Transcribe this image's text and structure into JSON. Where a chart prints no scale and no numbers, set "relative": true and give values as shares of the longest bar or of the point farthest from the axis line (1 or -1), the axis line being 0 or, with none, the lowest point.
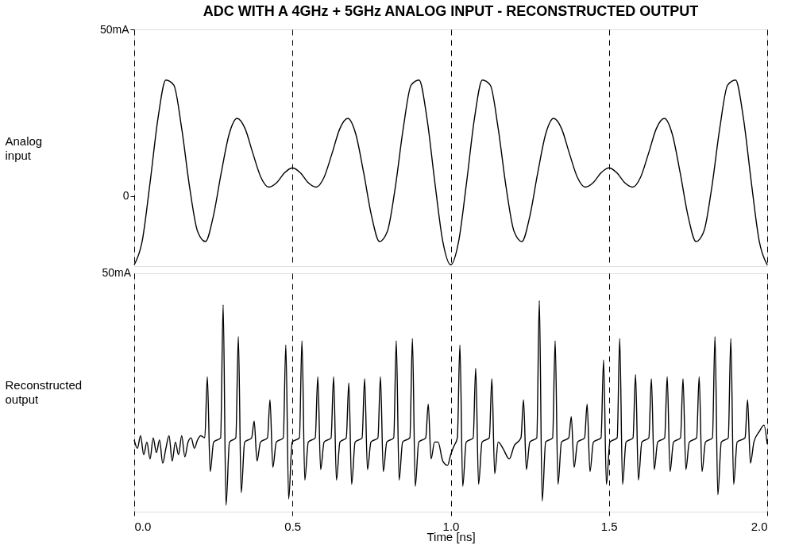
{
  "chart_data": [
    {
      "type": "line",
      "title": "ADC WITH A 4GHz + 5GHz ANALOG INPUT - RECONSTRUCTED OUTPUT",
      "ylabel": "Analog input",
      "xlim": [
        0,
        2
      ],
      "ylim": [
        -21,
        50
      ],
      "yticks": [
        {
          "value": 50,
          "label": "50mA"
        },
        0
      ],
      "tick_labels": "y",
      "grid": "x",
      "series": [
        {
          "color": "#000000",
          "x": [
            0,
            0.025,
            0.05,
            0.075,
            0.1,
            0.125,
            0.15,
            0.175,
            0.2,
            0.225,
            0.25,
            0.275,
            0.3,
            0.325,
            0.35,
            0.375,
            0.4,
            0.425,
            0.45,
            0.475,
            0.5,
            0.525,
            0.55,
            0.575,
            0.6,
            0.625,
            0.65,
            0.675,
            0.7,
            0.725,
            0.75,
            0.775,
            0.8,
            0.825,
            0.85,
            0.875,
            0.9,
            0.925,
            0.95,
            0.975,
            1.0,
            1.025,
            1.05,
            1.075,
            1.1,
            1.125,
            1.15,
            1.175,
            1.2,
            1.225,
            1.25,
            1.275,
            1.3,
            1.325,
            1.35,
            1.375,
            1.4,
            1.425,
            1.45,
            1.475,
            1.5,
            1.525,
            1.55,
            1.575,
            1.6,
            1.625,
            1.65,
            1.675,
            1.7,
            1.725,
            1.75,
            1.775,
            1.8,
            1.825,
            1.85,
            1.875,
            1.9,
            1.925,
            1.95,
            1.975,
            2.0
          ],
          "values": [
            -20.6,
            -13.6,
            4.0,
            23.3,
            34.8,
            33.3,
            20.3,
            2.7,
            -10.5,
            -13.6,
            -6.0,
            7.0,
            18.6,
            23.3,
            20.3,
            12.8,
            5.7,
            2.7,
            4.0,
            7.0,
            8.5,
            7.0,
            4.0,
            2.7,
            5.7,
            12.8,
            20.3,
            23.3,
            18.6,
            7.0,
            -6.0,
            -13.6,
            -10.5,
            2.7,
            20.3,
            33.3,
            34.8,
            23.3,
            4.0,
            -13.6,
            -20.6,
            -13.6,
            4.0,
            23.3,
            34.8,
            33.3,
            20.3,
            2.7,
            -10.5,
            -13.6,
            -6.0,
            7.0,
            18.6,
            23.3,
            20.3,
            12.8,
            5.7,
            2.7,
            4.0,
            7.0,
            8.5,
            7.0,
            4.0,
            2.7,
            5.7,
            12.8,
            20.3,
            23.3,
            18.6,
            7.0,
            -6.0,
            -13.6,
            -10.5,
            2.7,
            20.3,
            33.3,
            34.8,
            23.3,
            4.0,
            -13.6,
            -20.6
          ]
        }
      ]
    },
    {
      "type": "line",
      "ylabel": "Reconstructed output",
      "xlabel": "Time [ns]",
      "relative": true,
      "annotations": [
        "50mA"
      ],
      "xlim": [
        0,
        2
      ],
      "xticks": [
        {
          "value": 0,
          "label": "0.0"
        },
        0.5,
        {
          "value": 1,
          "label": "1.0"
        },
        1.5,
        {
          "value": 2,
          "label": "2.0"
        }
      ],
      "tick_labels": "x",
      "grid": "x",
      "series": [
        {
          "color": "#000000",
          "x": [
            0,
            0.01,
            0.02,
            0.03,
            0.04,
            0.05,
            0.06,
            0.07,
            0.08,
            0.09,
            0.1,
            0.11,
            0.12,
            0.13,
            0.14,
            0.15,
            0.16,
            0.17,
            0.18,
            0.19,
            0.2,
            0.21,
            0.223,
            0.231,
            0.24,
            0.251,
            0.273,
            0.281,
            0.29,
            0.301,
            0.321,
            0.329,
            0.338,
            0.349,
            0.371,
            0.379,
            0.388,
            0.399,
            0.421,
            0.429,
            0.438,
            0.449,
            0.471,
            0.479,
            0.488,
            0.499,
            0.522,
            0.53,
            0.539,
            0.55,
            0.572,
            0.58,
            0.589,
            0.6,
            0.622,
            0.63,
            0.639,
            0.65,
            0.67,
            0.678,
            0.687,
            0.698,
            0.72,
            0.728,
            0.737,
            0.748,
            0.77,
            0.778,
            0.787,
            0.798,
            0.82,
            0.828,
            0.837,
            0.848,
            0.871,
            0.879,
            0.888,
            0.899,
            0.921,
            0.929,
            0.938,
            0.949,
            0.96,
            0.975,
            0.99,
            1.0,
            1.01,
            1.021,
            1.029,
            1.038,
            1.049,
            1.071,
            1.079,
            1.088,
            1.099,
            1.122,
            1.13,
            1.139,
            1.15,
            1.165,
            1.185,
            1.2,
            1.222,
            1.23,
            1.239,
            1.25,
            1.272,
            1.28,
            1.289,
            1.3,
            1.322,
            1.33,
            1.339,
            1.35,
            1.373,
            1.381,
            1.39,
            1.401,
            1.423,
            1.431,
            1.44,
            1.451,
            1.475,
            1.483,
            1.492,
            1.503,
            1.526,
            1.534,
            1.543,
            1.554,
            1.576,
            1.584,
            1.593,
            1.604,
            1.626,
            1.634,
            1.643,
            1.654,
            1.676,
            1.684,
            1.693,
            1.704,
            1.726,
            1.734,
            1.743,
            1.754,
            1.777,
            1.785,
            1.794,
            1.805,
            1.827,
            1.835,
            1.844,
            1.855,
            1.877,
            1.885,
            1.894,
            1.905,
            1.93,
            1.938,
            1.947,
            1.958,
            1.975,
            1.99,
            2.0
          ],
          "values": [
            0.34,
            0.3,
            0.36,
            0.27,
            0.33,
            0.25,
            0.35,
            0.28,
            0.34,
            0.23,
            0.3,
            0.36,
            0.24,
            0.33,
            0.27,
            0.36,
            0.26,
            0.33,
            0.35,
            0.3,
            0.34,
            0.36,
            0.35,
            0.64,
            0.19,
            0.33,
            0.35,
            0.98,
            0.03,
            0.33,
            0.35,
            0.83,
            0.09,
            0.33,
            0.35,
            0.43,
            0.24,
            0.33,
            0.35,
            0.53,
            0.21,
            0.33,
            0.35,
            0.79,
            0.06,
            0.33,
            0.35,
            0.81,
            0.15,
            0.33,
            0.35,
            0.64,
            0.2,
            0.33,
            0.35,
            0.64,
            0.15,
            0.33,
            0.35,
            0.61,
            0.13,
            0.33,
            0.35,
            0.63,
            0.2,
            0.33,
            0.35,
            0.64,
            0.19,
            0.33,
            0.35,
            0.81,
            0.15,
            0.33,
            0.35,
            0.82,
            0.12,
            0.33,
            0.35,
            0.51,
            0.25,
            0.33,
            0.33,
            0.24,
            0.22,
            0.27,
            0.31,
            0.35,
            0.79,
            0.12,
            0.33,
            0.35,
            0.68,
            0.13,
            0.33,
            0.35,
            0.63,
            0.18,
            0.33,
            0.3,
            0.25,
            0.31,
            0.35,
            0.53,
            0.2,
            0.33,
            0.35,
            1.0,
            0.05,
            0.33,
            0.35,
            0.81,
            0.13,
            0.33,
            0.35,
            0.45,
            0.21,
            0.33,
            0.35,
            0.51,
            0.19,
            0.33,
            0.35,
            0.72,
            0.13,
            0.33,
            0.35,
            0.82,
            0.13,
            0.33,
            0.35,
            0.65,
            0.15,
            0.33,
            0.35,
            0.63,
            0.2,
            0.33,
            0.35,
            0.64,
            0.19,
            0.33,
            0.35,
            0.63,
            0.2,
            0.33,
            0.35,
            0.64,
            0.19,
            0.33,
            0.35,
            0.83,
            0.08,
            0.33,
            0.35,
            0.82,
            0.13,
            0.33,
            0.35,
            0.53,
            0.23,
            0.33,
            0.38,
            0.41,
            0.32
          ]
        }
      ]
    }
  ]
}
